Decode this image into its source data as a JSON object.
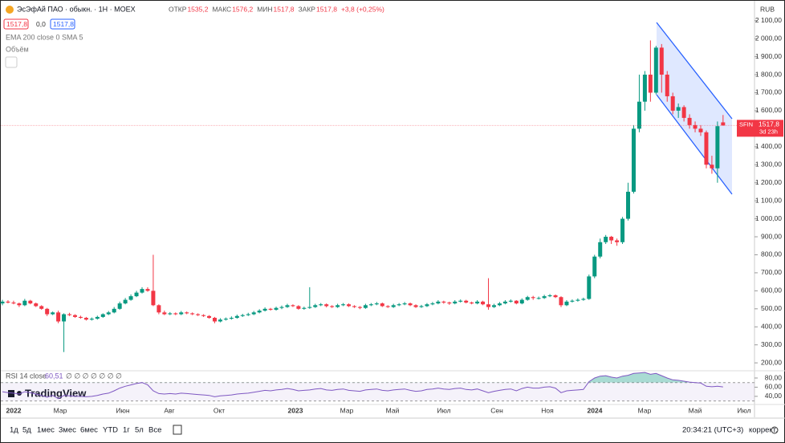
{
  "header": {
    "title": "ЭсЭфАй ПАО · обыкн. · 1Н · MOEX",
    "stats": [
      "ОТКР",
      "1535,2",
      "МАКС",
      "1576,2",
      "МИН",
      "1517,8",
      "ЗАКР",
      "1517,8",
      "+3,8 (+0,25%)"
    ],
    "badges": [
      "1517,8",
      "0,0",
      "1517,8"
    ],
    "indicators": [
      "EMA 200 close 0 SMA 5",
      "Объём"
    ],
    "currency": "RUB"
  },
  "chart_data": {
    "type": "candlestick",
    "up_color": "#089981",
    "down_color": "#f23645",
    "open": [
      530,
      540,
      535,
      530,
      520,
      545,
      530,
      515,
      500,
      470,
      480,
      430,
      470,
      465,
      455,
      450,
      440,
      445,
      455,
      470,
      480,
      500,
      530,
      550,
      570,
      590,
      610,
      600,
      520,
      480,
      470,
      475,
      470,
      480,
      475,
      470,
      465,
      460,
      450,
      430,
      440,
      445,
      450,
      460,
      465,
      470,
      480,
      490,
      500,
      495,
      505,
      510,
      520,
      515,
      500,
      505,
      510,
      520,
      525,
      515,
      510,
      520,
      525,
      515,
      510,
      505,
      520,
      525,
      530,
      515,
      510,
      520,
      525,
      530,
      520,
      510,
      515,
      525,
      530,
      540,
      535,
      530,
      540,
      545,
      535,
      530,
      540,
      525,
      510,
      520,
      530,
      540,
      545,
      530,
      550,
      565,
      560,
      560,
      570,
      575,
      565,
      520,
      540,
      545,
      550,
      555,
      680,
      790,
      870,
      900,
      880,
      870,
      1000,
      1150,
      1500,
      1650,
      1800,
      1700,
      1950,
      1800,
      1680,
      1600,
      1620,
      1560,
      1520,
      1500,
      1480,
      1300,
      1280,
      1535.2
    ],
    "high": [
      550,
      548,
      545,
      535,
      555,
      550,
      535,
      520,
      505,
      485,
      490,
      475,
      478,
      470,
      462,
      455,
      452,
      462,
      475,
      488,
      510,
      540,
      560,
      580,
      600,
      620,
      620,
      800,
      525,
      490,
      482,
      480,
      488,
      485,
      480,
      475,
      470,
      465,
      455,
      448,
      452,
      458,
      468,
      472,
      478,
      488,
      498,
      508,
      505,
      512,
      518,
      528,
      525,
      520,
      512,
      620,
      528,
      532,
      530,
      520,
      528,
      532,
      530,
      520,
      515,
      528,
      532,
      538,
      535,
      520,
      528,
      532,
      538,
      535,
      525,
      522,
      532,
      538,
      548,
      545,
      540,
      548,
      552,
      550,
      540,
      548,
      545,
      670,
      528,
      538,
      548,
      552,
      548,
      558,
      572,
      572,
      568,
      578,
      582,
      580,
      570,
      548,
      552,
      558,
      562,
      690,
      800,
      890,
      910,
      905,
      890,
      1010,
      1200,
      1520,
      1800,
      1820,
      1990,
      1960,
      1970,
      1820,
      1700,
      1640,
      1630,
      1580,
      1540,
      1520,
      1490,
      1350,
      1540,
      1576.2
    ],
    "low": [
      520,
      530,
      525,
      510,
      515,
      525,
      510,
      495,
      460,
      465,
      420,
      260,
      460,
      450,
      445,
      435,
      435,
      440,
      450,
      465,
      475,
      495,
      525,
      545,
      565,
      585,
      595,
      515,
      470,
      465,
      465,
      465,
      465,
      470,
      465,
      460,
      455,
      445,
      420,
      425,
      435,
      440,
      445,
      455,
      460,
      465,
      475,
      485,
      490,
      490,
      498,
      505,
      510,
      495,
      495,
      500,
      505,
      515,
      508,
      505,
      505,
      515,
      510,
      505,
      498,
      500,
      515,
      520,
      510,
      505,
      505,
      515,
      520,
      515,
      505,
      505,
      510,
      520,
      525,
      528,
      522,
      525,
      535,
      530,
      525,
      525,
      520,
      495,
      505,
      515,
      525,
      535,
      525,
      525,
      545,
      550,
      552,
      555,
      565,
      560,
      510,
      515,
      535,
      540,
      545,
      550,
      670,
      780,
      860,
      860,
      850,
      860,
      990,
      1140,
      1480,
      1600,
      1650,
      1690,
      1700,
      1650,
      1580,
      1560,
      1540,
      1500,
      1480,
      1460,
      1280,
      1250,
      1200,
      1517.8
    ],
    "close": [
      540,
      535,
      530,
      520,
      545,
      530,
      515,
      500,
      470,
      480,
      430,
      470,
      465,
      455,
      450,
      440,
      445,
      455,
      470,
      480,
      500,
      530,
      550,
      570,
      590,
      610,
      600,
      520,
      480,
      470,
      475,
      470,
      480,
      475,
      470,
      465,
      460,
      450,
      430,
      440,
      445,
      450,
      460,
      465,
      470,
      480,
      490,
      500,
      495,
      505,
      510,
      520,
      515,
      500,
      505,
      510,
      520,
      525,
      515,
      510,
      520,
      525,
      515,
      510,
      505,
      520,
      525,
      530,
      515,
      510,
      520,
      525,
      530,
      520,
      510,
      515,
      525,
      530,
      540,
      535,
      530,
      540,
      545,
      535,
      530,
      540,
      525,
      510,
      520,
      530,
      540,
      545,
      530,
      550,
      565,
      560,
      560,
      570,
      575,
      565,
      520,
      540,
      545,
      550,
      555,
      680,
      790,
      870,
      900,
      880,
      870,
      1000,
      1150,
      1500,
      1650,
      1800,
      1700,
      1950,
      1800,
      1680,
      1600,
      1620,
      1560,
      1520,
      1500,
      1480,
      1300,
      1280,
      1514,
      1517.8
    ],
    "last_price": {
      "symbol": "SFIN",
      "value": 1517.8,
      "value_label": "1517,8",
      "countdown": "3d 23h"
    },
    "ylim": [
      165,
      2210
    ],
    "yticks": [
      {
        "value": 2100,
        "label": "2 100,00"
      },
      {
        "value": 2000,
        "label": "2 000,00"
      },
      {
        "value": 1900,
        "label": "1 900,00"
      },
      {
        "value": 1800,
        "label": "1 800,00"
      },
      {
        "value": 1700,
        "label": "1 700,00"
      },
      {
        "value": 1600,
        "label": "1 600,00"
      },
      {
        "value": 1500,
        "label": "1 500,00"
      },
      {
        "value": 1400,
        "label": "1 400,00"
      },
      {
        "value": 1300,
        "label": "1 300,00"
      },
      {
        "value": 1200,
        "label": "1 200,00"
      },
      {
        "value": 1100,
        "label": "1 100,00"
      },
      {
        "value": 1000,
        "label": "1 000,00"
      },
      {
        "value": 900,
        "label": "900,00"
      },
      {
        "value": 800,
        "label": "800,00"
      },
      {
        "value": 700,
        "label": "700,00"
      },
      {
        "value": 600,
        "label": "600,00"
      },
      {
        "value": 500,
        "label": "500,00"
      },
      {
        "value": 400,
        "label": "400,00"
      },
      {
        "value": 300,
        "label": "300,00"
      },
      {
        "value": 200,
        "label": "200,00"
      }
    ],
    "x_labels": [
      "2022",
      "Мар",
      "Июн",
      "Авг",
      "Окт",
      "2023",
      "Мар",
      "Май",
      "Июл",
      "Сен",
      "Ноя",
      "2024",
      "Мар",
      "Май",
      "Июл"
    ]
  },
  "rsi": {
    "title": "RSI 14 close",
    "value_label": "60,51",
    "extra": "∅ ∅ ∅ ∅ ∅ ∅ ∅",
    "color": "#7e57c2",
    "values": [
      50,
      48,
      47,
      45,
      50,
      48,
      45,
      42,
      38,
      42,
      35,
      42,
      41,
      40,
      40,
      39,
      40,
      42,
      45,
      47,
      52,
      58,
      62,
      65,
      68,
      70,
      65,
      52,
      46,
      45,
      46,
      45,
      47,
      46,
      45,
      44,
      43,
      42,
      39,
      41,
      42,
      43,
      45,
      46,
      47,
      49,
      51,
      53,
      52,
      54,
      55,
      57,
      55,
      52,
      53,
      54,
      56,
      57,
      54,
      53,
      55,
      56,
      53,
      52,
      51,
      54,
      55,
      56,
      53,
      52,
      54,
      55,
      56,
      53,
      51,
      52,
      55,
      56,
      58,
      56,
      55,
      57,
      58,
      55,
      54,
      56,
      52,
      48,
      51,
      53,
      55,
      56,
      52,
      57,
      60,
      58,
      58,
      60,
      61,
      58,
      48,
      52,
      53,
      54,
      55,
      72,
      80,
      84,
      85,
      82,
      80,
      84,
      86,
      90,
      91,
      92,
      88,
      90,
      85,
      80,
      76,
      75,
      73,
      71,
      70,
      69,
      62,
      61,
      62,
      60.51
    ],
    "ylim": [
      24,
      94
    ],
    "bands": [
      30,
      70
    ],
    "yticks": [
      {
        "value": 80,
        "label": "80,00"
      },
      {
        "value": 60,
        "label": "60,00"
      },
      {
        "value": 40,
        "label": "40,00"
      }
    ]
  },
  "logo": "TradingView",
  "toolbar": {
    "ranges": [
      "1д",
      "5д",
      "1мес",
      "3мес",
      "6мес",
      "YTD",
      "1г",
      "5л",
      "Все"
    ],
    "clock": "20:34:21 (UTC+3)",
    "adjust": "коррект."
  }
}
